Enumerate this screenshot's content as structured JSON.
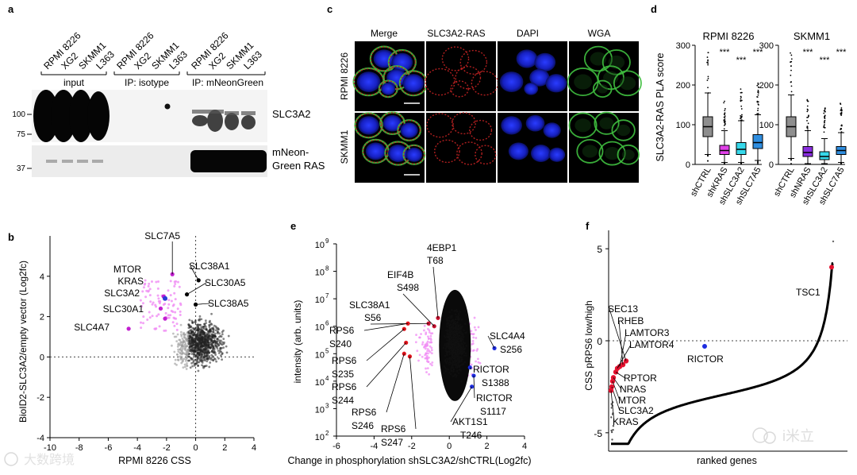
{
  "panels": {
    "a": {
      "letter": "a",
      "lanes": [
        "RPMI 8226",
        "XG2",
        "SKMM1",
        "L363",
        "RPMI 8226",
        "XG2",
        "SKMM1",
        "L363",
        "RPMI 8226",
        "XG2",
        "SKMM1",
        "L363"
      ],
      "groups": [
        "input",
        "IP: isotype",
        "IP: mNeonGreen"
      ],
      "mw_top": [
        "100",
        "75"
      ],
      "mw_bottom": [
        "37"
      ],
      "blot_top_label": "SLC3A2",
      "blot_bottom_label_1": "mNeon-",
      "blot_bottom_label_2": "Green RAS"
    },
    "c": {
      "letter": "c",
      "columns": [
        "Merge",
        "SLC3A2-RAS",
        "DAPI",
        "WGA"
      ],
      "rows": [
        "RPMI 8226",
        "SKMM1"
      ]
    },
    "d": {
      "letter": "d",
      "ylabel": "SLC3A2-RAS PLA score",
      "charts": [
        {
          "title": "RPMI 8226",
          "categories": [
            "shCTRL",
            "shKRAS",
            "shSLC3A2",
            "shSLC7A5"
          ],
          "sig": [
            "***",
            "***",
            "***"
          ]
        },
        {
          "title": "SKMM1",
          "categories": [
            "shCTRL",
            "shNRAS",
            "shSLC3A2",
            "shSLC7A5"
          ],
          "sig": [
            "***",
            "***",
            "***"
          ]
        }
      ],
      "yticks": [
        "0",
        "100",
        "200",
        "300"
      ]
    },
    "b": {
      "letter": "b",
      "xlabel": "RPMI 8226 CSS",
      "ylabel": "BioID2-SLC3A2/empty vector (Log2fc)",
      "xticks": [
        "-10",
        "-8",
        "-6",
        "-4",
        "-2",
        "0",
        "2",
        "4"
      ],
      "yticks": [
        "-4",
        "-2",
        "0",
        "2",
        "4"
      ],
      "labels": [
        "SLC7A5",
        "MTOR",
        "KRAS",
        "SLC3A2",
        "SLC30A1",
        "SLC4A7",
        "SLC38A1",
        "SLC30A5",
        "SLC38A5"
      ]
    },
    "e": {
      "letter": "e",
      "xlabel": "Change in phosphorylation shSLC3A2/shCTRL(Log2fc)",
      "ylabel": "intensity (arb. units)",
      "xticks": [
        "-6",
        "-4",
        "-2",
        "0",
        "2",
        "4"
      ],
      "ytick_exps": [
        "2",
        "3",
        "4",
        "5",
        "6",
        "7",
        "8",
        "9"
      ],
      "ytick_base": "10",
      "labels": [
        "4EBP1",
        "T68",
        "EIF4B",
        "S498",
        "SLC38A1",
        "S56",
        "RPS6",
        "S240",
        "RPS6",
        "S235",
        "RPS6",
        "S244",
        "RPS6",
        "S246",
        "RPS6",
        "S247",
        "SLC4A4",
        "S256",
        "RICTOR",
        "S1388",
        "RICTOR",
        "S1117",
        "AKT1S1",
        "T246"
      ]
    },
    "f": {
      "letter": "f",
      "xlabel": "ranked genes",
      "ylabel": "CSS pRPS6 low/high",
      "yticks": [
        "5",
        "0",
        "-5"
      ],
      "labels": [
        "TSC1",
        "SEC13",
        "RHEB",
        "LAMTOR3",
        "LAMTOR4",
        "RICTOR",
        "RPTOR",
        "NRAS",
        "MTOR",
        "SLC3A2",
        "KRAS"
      ]
    }
  },
  "chart_data": [
    {
      "type": "box",
      "title": "RPMI 8226",
      "ylabel": "SLC3A2-RAS PLA score",
      "ylim": [
        0,
        300
      ],
      "categories": [
        "shCTRL",
        "shKRAS",
        "shSLC3A2",
        "shSLC7A5"
      ],
      "medians": [
        95,
        35,
        38,
        55
      ],
      "q1": [
        70,
        25,
        25,
        40
      ],
      "q3": [
        120,
        48,
        55,
        75
      ],
      "whisker_low": [
        25,
        5,
        5,
        10
      ],
      "whisker_high": [
        180,
        85,
        110,
        125
      ],
      "colors": [
        "#8e8e8e",
        "#e040e8",
        "#36d8ea",
        "#2f8ee0"
      ]
    },
    {
      "type": "box",
      "title": "SKMM1",
      "ylabel": "SLC3A2-RAS PLA score",
      "ylim": [
        0,
        300
      ],
      "categories": [
        "shCTRL",
        "shNRAS",
        "shSLC3A2",
        "shSLC7A5"
      ],
      "medians": [
        95,
        30,
        20,
        35
      ],
      "q1": [
        70,
        20,
        12,
        25
      ],
      "q3": [
        120,
        45,
        32,
        45
      ],
      "whisker_low": [
        15,
        2,
        2,
        5
      ],
      "whisker_high": [
        175,
        85,
        65,
        80
      ],
      "colors": [
        "#8e8e8e",
        "#8a2ee0",
        "#36d8ea",
        "#2f8ee0"
      ]
    },
    {
      "type": "scatter",
      "title": "",
      "xlabel": "RPMI 8226 CSS",
      "ylabel": "BioID2-SLC3A2/empty vector (Log2fc)",
      "xlim": [
        -10,
        4
      ],
      "ylim": [
        -4,
        6
      ],
      "points": [
        {
          "name": "SLC7A5",
          "x": -1.6,
          "y": 4.1
        },
        {
          "name": "MTOR",
          "x": -2.2,
          "y": 3.0
        },
        {
          "name": "KRAS",
          "x": -2.1,
          "y": 2.9
        },
        {
          "name": "SLC3A2",
          "x": -2.4,
          "y": 2.4
        },
        {
          "name": "SLC30A1",
          "x": -2.1,
          "y": 1.9
        },
        {
          "name": "SLC4A7",
          "x": -4.6,
          "y": 1.4
        },
        {
          "name": "SLC38A1",
          "x": 0.2,
          "y": 3.8
        },
        {
          "name": "SLC30A5",
          "x": -0.6,
          "y": 3.1
        },
        {
          "name": "SLC38A5",
          "x": 0.0,
          "y": 2.6
        }
      ]
    },
    {
      "type": "scatter",
      "title": "",
      "xlabel": "Change in phosphorylation shSLC3A2/shCTRL(Log2fc)",
      "ylabel": "intensity (arb. units)",
      "xlim": [
        -6,
        4
      ],
      "ylim_log10": [
        2,
        9
      ],
      "points": [
        {
          "name": "4EBP1 T68",
          "x": -0.6,
          "y_log10": 6.3
        },
        {
          "name": "EIF4B S498",
          "x": -0.8,
          "y_log10": 6.0
        },
        {
          "name": "SLC38A1 S56",
          "x": -1.1,
          "y_log10": 6.1
        },
        {
          "name": "RPS6 S240",
          "x": -2.2,
          "y_log10": 6.1
        },
        {
          "name": "RPS6 S235",
          "x": -2.4,
          "y_log10": 5.9
        },
        {
          "name": "RPS6 S244",
          "x": -2.3,
          "y_log10": 5.4
        },
        {
          "name": "RPS6 S246",
          "x": -2.4,
          "y_log10": 5.0
        },
        {
          "name": "RPS6 S247",
          "x": -2.1,
          "y_log10": 4.9
        },
        {
          "name": "SLC4A4 S256",
          "x": 2.4,
          "y_log10": 5.2
        },
        {
          "name": "RICTOR S1388",
          "x": 1.1,
          "y_log10": 4.5
        },
        {
          "name": "RICTOR S1117",
          "x": 1.3,
          "y_log10": 4.2
        },
        {
          "name": "AKT1S1 T246",
          "x": 1.2,
          "y_log10": 3.8
        }
      ]
    },
    {
      "type": "line",
      "title": "",
      "xlabel": "ranked genes",
      "ylabel": "CSS pRPS6 low/high",
      "ylim": [
        -6,
        6
      ],
      "highlighted": [
        {
          "name": "TSC1",
          "y": 4.0
        },
        {
          "name": "SEC13",
          "y": -1.1
        },
        {
          "name": "RHEB",
          "y": -1.3
        },
        {
          "name": "LAMTOR3",
          "y": -1.4
        },
        {
          "name": "LAMTOR4",
          "y": -1.5
        },
        {
          "name": "RICTOR",
          "y": -0.3
        },
        {
          "name": "RPTOR",
          "y": -1.7
        },
        {
          "name": "NRAS",
          "y": -2.0
        },
        {
          "name": "MTOR",
          "y": -2.2
        },
        {
          "name": "SLC3A2",
          "y": -2.5
        },
        {
          "name": "KRAS",
          "y": -2.7
        }
      ]
    }
  ],
  "watermark": {
    "left": "大数跨境",
    "right": "i米立"
  }
}
